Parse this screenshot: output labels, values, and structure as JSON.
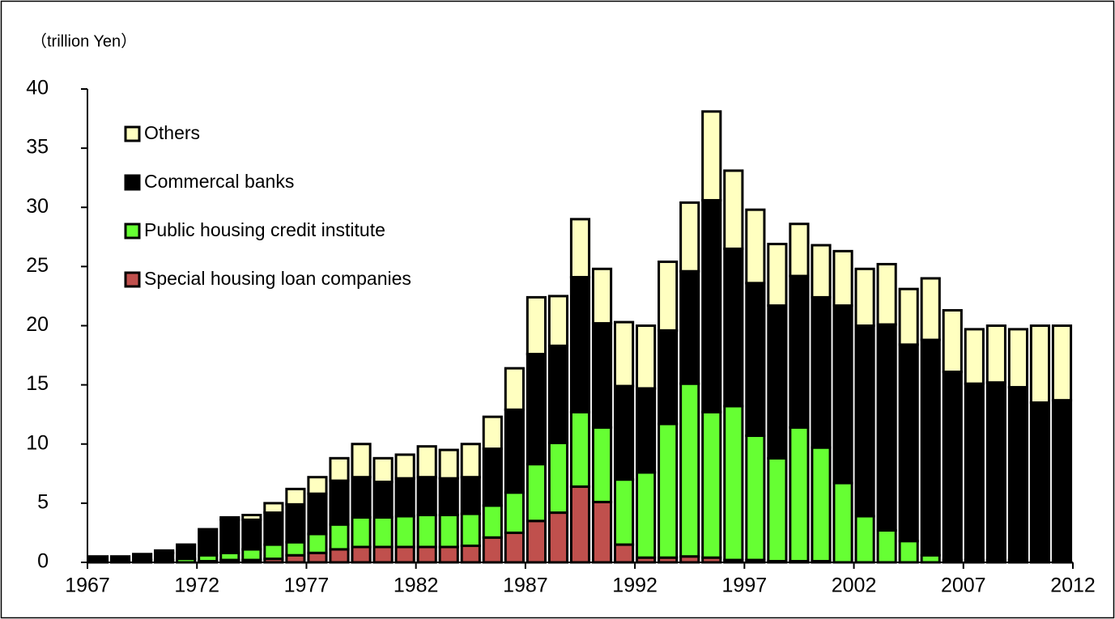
{
  "chart_data": {
    "type": "stacked_bar",
    "y_axis_label": "（trillion Yen）",
    "x": [
      1967,
      1968,
      1969,
      1970,
      1971,
      1972,
      1973,
      1974,
      1975,
      1976,
      1977,
      1978,
      1979,
      1980,
      1981,
      1982,
      1983,
      1984,
      1985,
      1986,
      1987,
      1988,
      1989,
      1990,
      1991,
      1992,
      1993,
      1994,
      1995,
      1996,
      1997,
      1998,
      1999,
      2000,
      2001,
      2002,
      2003,
      2004,
      2005,
      2006,
      2007,
      2008,
      2009,
      2010,
      2011
    ],
    "series": [
      {
        "name": "Special housing loan companies",
        "color": "#c0504d",
        "values": [
          0,
          0,
          0,
          0,
          0,
          0.1,
          0.2,
          0.2,
          0.3,
          0.6,
          0.8,
          1.1,
          1.3,
          1.3,
          1.3,
          1.3,
          1.3,
          1.4,
          2.1,
          2.5,
          3.5,
          4.2,
          6.4,
          5.1,
          1.5,
          0.4,
          0.4,
          0.5,
          0.4,
          0.2,
          0.2,
          0.1,
          0.1,
          0.1,
          0,
          0,
          0,
          0,
          0,
          0,
          0,
          0,
          0,
          0,
          0
        ]
      },
      {
        "name": "Public housing credit institute",
        "color": "#66ff33",
        "values": [
          0.1,
          0.1,
          0.2,
          0.2,
          0.3,
          0.5,
          0.6,
          0.9,
          1.2,
          1.1,
          1.6,
          2.1,
          2.5,
          2.5,
          2.6,
          2.7,
          2.7,
          2.7,
          2.7,
          3.4,
          4.8,
          5.9,
          6.3,
          6.3,
          5.5,
          7.2,
          11.3,
          14.6,
          12.3,
          13.0,
          10.5,
          8.7,
          11.3,
          9.6,
          6.7,
          3.9,
          2.7,
          1.8,
          0.6,
          0.2,
          0.2,
          0.2,
          0.2,
          0.1,
          0.1
        ]
      },
      {
        "name": "Commercal banks",
        "color": "#000000",
        "values": [
          0.4,
          0.4,
          0.5,
          0.6,
          1.2,
          2.2,
          2.8,
          2.5,
          2.7,
          3.2,
          3.4,
          3.7,
          3.4,
          3.0,
          3.2,
          3.2,
          3.1,
          3.1,
          4.8,
          7.0,
          9.3,
          8.2,
          11.4,
          8.8,
          7.9,
          7.1,
          7.9,
          9.5,
          17.9,
          13.3,
          12.9,
          12.9,
          12.8,
          12.7,
          15.0,
          16.1,
          17.4,
          16.6,
          18.2,
          15.9,
          14.9,
          15.0,
          14.6,
          13.4,
          13.6
        ]
      },
      {
        "name": "Others",
        "color": "#ffffc0",
        "values": [
          0,
          0,
          0,
          0.2,
          0,
          0,
          0.2,
          0.4,
          0.8,
          1.3,
          1.4,
          1.9,
          2.8,
          2.0,
          2.0,
          2.6,
          2.4,
          2.8,
          2.7,
          3.5,
          4.8,
          4.2,
          4.9,
          4.6,
          5.4,
          5.3,
          5.8,
          5.8,
          7.5,
          6.6,
          6.2,
          5.2,
          4.4,
          4.4,
          4.6,
          4.8,
          5.1,
          4.7,
          5.2,
          5.2,
          4.6,
          4.8,
          4.9,
          6.5,
          6.3
        ]
      }
    ],
    "xlim": [
      1967,
      2012
    ],
    "xticks": [
      1967,
      1972,
      1977,
      1982,
      1987,
      1992,
      1997,
      2002,
      2007,
      2012
    ],
    "ylim": [
      0,
      40
    ],
    "yticks": [
      0,
      5,
      10,
      15,
      20,
      25,
      30,
      35,
      40
    ],
    "grid": false,
    "legend": "upper left"
  }
}
